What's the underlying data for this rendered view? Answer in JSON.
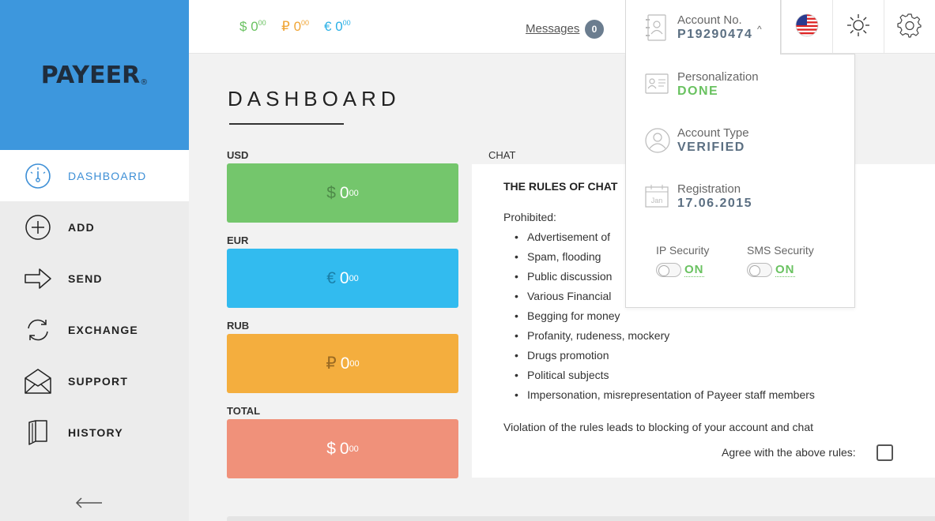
{
  "logo": {
    "text": "PAYEER",
    "mark": "®"
  },
  "sidebar": {
    "items": [
      {
        "label": "DASHBOARD",
        "icon": "dashboard-gauge-icon",
        "active": true
      },
      {
        "label": "ADD",
        "icon": "add-plus-icon"
      },
      {
        "label": "SEND",
        "icon": "send-arrow-icon"
      },
      {
        "label": "EXCHANGE",
        "icon": "exchange-cycle-icon"
      },
      {
        "label": "SUPPORT",
        "icon": "support-envelope-icon"
      },
      {
        "label": "HISTORY",
        "icon": "history-book-icon"
      }
    ],
    "collapse_icon": "arrow-left-icon"
  },
  "topbar": {
    "balances": [
      {
        "symbol": "$",
        "value": "0",
        "fraction": "00"
      },
      {
        "symbol": "₽",
        "value": "0",
        "fraction": "00"
      },
      {
        "symbol": "€",
        "value": "0",
        "fraction": "00"
      }
    ],
    "messages_label": "Messages",
    "messages_count": "0",
    "account": {
      "label": "Account No.",
      "number": "P19290474",
      "caret": "^"
    },
    "language_icon": "us-flag-icon",
    "theme_icon": "sun-icon",
    "settings_icon": "gear-icon"
  },
  "account_dropdown": {
    "personalization": {
      "label": "Personalization",
      "value": "DONE"
    },
    "account_type": {
      "label": "Account Type",
      "value": "VERIFIED"
    },
    "registration": {
      "label": "Registration",
      "value": "17.06.2015",
      "icon_text": "Jan"
    },
    "ip_security": {
      "label": "IP Security",
      "value": "ON"
    },
    "sms_security": {
      "label": "SMS Security",
      "value": "ON"
    }
  },
  "main": {
    "title": "DASHBOARD",
    "cards": [
      {
        "label": "USD",
        "symbol": "$",
        "value": "0",
        "fraction": "00"
      },
      {
        "label": "EUR",
        "symbol": "€",
        "value": "0",
        "fraction": "00"
      },
      {
        "label": "RUB",
        "symbol": "₽",
        "value": "0",
        "fraction": "00"
      },
      {
        "label": "TOTAL",
        "symbol": "$",
        "value": "0",
        "fraction": "00"
      }
    ]
  },
  "chat": {
    "label": "CHAT",
    "rules_title": "THE RULES OF CHAT",
    "prohibited_label": "Prohibited:",
    "rules": [
      "Advertisement of",
      "Spam, flooding",
      "Public discussion",
      "Various Financial",
      "Begging for money",
      "Profanity, rudeness, mockery",
      "Drugs promotion",
      "Political subjects",
      "Impersonation, misrepresentation of Payeer staff members"
    ],
    "violation_text": "Violation of the rules leads to blocking of your account and chat",
    "agree_label": "Agree with the above rules:"
  },
  "colors": {
    "brand_blue": "#3d97dd",
    "usd_green": "#74c66c",
    "eur_blue": "#32bbef",
    "rub_orange": "#f4ae3e",
    "total_salmon": "#f0917a",
    "status_green": "#6ac261"
  }
}
